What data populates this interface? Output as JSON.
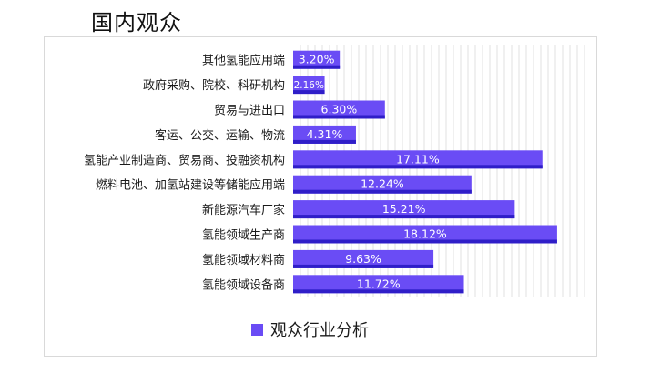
{
  "page": {
    "title": "国内观众"
  },
  "colors": {
    "bar_fill": "#6a4cf5",
    "bar_shadow": "#2f1ec8",
    "value_label": "#ffffff",
    "grid": "#e2e2e2",
    "text": "#1a1a1a"
  },
  "chart_data": {
    "type": "bar",
    "orientation": "horizontal",
    "title": "",
    "xlabel": "",
    "ylabel": "",
    "grid": true,
    "legend_position": "bottom",
    "series": [
      {
        "name": "观众行业分析",
        "categories": [
          "其他氢能应用端",
          "政府采购、院校、科研机构",
          "贸易与进出口",
          "客运、公交、运输、物流",
          "氢能产业制造商、贸易商、投融资机构",
          "燃料电池、加氢站建设等储能应用端",
          "新能源汽车厂家",
          "氢能领域生产商",
          "氢能领域材料商",
          "氢能领域设备商"
        ],
        "values": [
          3.2,
          2.16,
          6.3,
          4.31,
          17.11,
          12.24,
          15.21,
          18.12,
          9.63,
          11.72
        ],
        "labels": [
          "3.20%",
          "2.16%",
          "6.30%",
          "4.31%",
          "17.11%",
          "12.24%",
          "15.21%",
          "18.12%",
          "9.63%",
          "11.72%"
        ]
      }
    ],
    "xlim": [
      0,
      20
    ]
  }
}
